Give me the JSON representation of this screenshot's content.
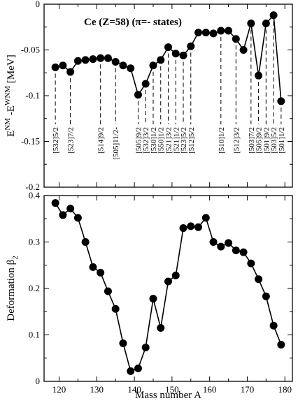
{
  "chart_data": [
    {
      "type": "line",
      "title": "Ce (Z=58) (π=- states)",
      "xlabel": "",
      "ylabel": "E^NM -E^WNM [MeV]",
      "ylabel_parts": {
        "main": "E",
        "sup1": "NM",
        "mid": "-E",
        "sup2": "WNM",
        "unit": "[MeV]"
      },
      "xlim": [
        116,
        182
      ],
      "ylim": [
        -0.2,
        0
      ],
      "xticks": [
        120,
        130,
        140,
        150,
        160,
        170,
        180
      ],
      "yticks": [
        0,
        -0.05,
        -0.1,
        -0.15,
        -0.2
      ],
      "ytick_labels": [
        "0",
        "-0.05",
        "-0.1",
        "-0.15",
        "-0.2"
      ],
      "series": [
        {
          "x": [
            119,
            121,
            123,
            125,
            127,
            129,
            131,
            133,
            135,
            137,
            139,
            141,
            143,
            145,
            147,
            149,
            151,
            153,
            155,
            157,
            159,
            161,
            163,
            165,
            167,
            169,
            171,
            173,
            175,
            177,
            179
          ],
          "y": [
            -0.069,
            -0.067,
            -0.074,
            -0.062,
            -0.061,
            -0.06,
            -0.059,
            -0.059,
            -0.063,
            -0.067,
            -0.07,
            -0.099,
            -0.087,
            -0.067,
            -0.061,
            -0.047,
            -0.054,
            -0.056,
            -0.046,
            -0.031,
            -0.031,
            -0.032,
            -0.029,
            -0.029,
            -0.038,
            -0.05,
            -0.021,
            -0.078,
            -0.021,
            -0.012,
            -0.106
          ]
        }
      ],
      "annotations": [
        {
          "x": 119,
          "text": "[532]5/2"
        },
        {
          "x": 123,
          "text": "[523]7/2"
        },
        {
          "x": 131,
          "text": "[514]9/2"
        },
        {
          "x": 135,
          "text": "[505]11/2-"
        },
        {
          "x": 141,
          "text": "[505]9/2"
        },
        {
          "x": 143,
          "text": "[532]3/2"
        },
        {
          "x": 145,
          "text": "[530]1/2"
        },
        {
          "x": 147,
          "text": "[550]1/2"
        },
        {
          "x": 149,
          "text": "[521]3/2"
        },
        {
          "x": 151,
          "text": "[521]1/2"
        },
        {
          "x": 153,
          "text": "[523]5/2"
        },
        {
          "x": 155,
          "text": "[512]5/2"
        },
        {
          "x": 163,
          "text": "[510]1/2"
        },
        {
          "x": 167,
          "text": "[512]3/2"
        },
        {
          "x": 171,
          "text": "[503]7/2"
        },
        {
          "x": 173,
          "text": "[505]9/2"
        },
        {
          "x": 175,
          "text": "[501]9/2"
        },
        {
          "x": 177,
          "text": "[503]5/2"
        },
        {
          "x": 179,
          "text": "[501]1/2"
        }
      ]
    },
    {
      "type": "line",
      "title": "",
      "xlabel": "Mass number A",
      "ylabel": "Deformation β2",
      "ylabel_parts": {
        "main": "Deformation β",
        "sub": "2"
      },
      "xlim": [
        116,
        182
      ],
      "ylim": [
        0,
        0.4
      ],
      "xticks": [
        120,
        130,
        140,
        150,
        160,
        170,
        180
      ],
      "xtick_labels": [
        "120",
        "130",
        "140",
        "150",
        "160",
        "170",
        "180"
      ],
      "yticks": [
        0,
        0.1,
        0.2,
        0.3,
        0.4
      ],
      "ytick_labels": [
        "0",
        "0.1",
        "0.2",
        "0.3",
        "0.4"
      ],
      "series": [
        {
          "x": [
            119,
            121,
            123,
            125,
            127,
            129,
            131,
            133,
            135,
            137,
            139,
            141,
            143,
            145,
            147,
            149,
            151,
            153,
            155,
            157,
            159,
            161,
            163,
            165,
            167,
            169,
            171,
            173,
            175,
            177,
            179
          ],
          "y": [
            0.384,
            0.358,
            0.372,
            0.352,
            0.3,
            0.246,
            0.234,
            0.194,
            0.156,
            0.082,
            0.022,
            0.028,
            0.073,
            0.178,
            0.115,
            0.215,
            0.228,
            0.33,
            0.334,
            0.332,
            0.352,
            0.3,
            0.29,
            0.298,
            0.282,
            0.278,
            0.254,
            0.22,
            0.183,
            0.12,
            0.079
          ]
        }
      ]
    }
  ]
}
